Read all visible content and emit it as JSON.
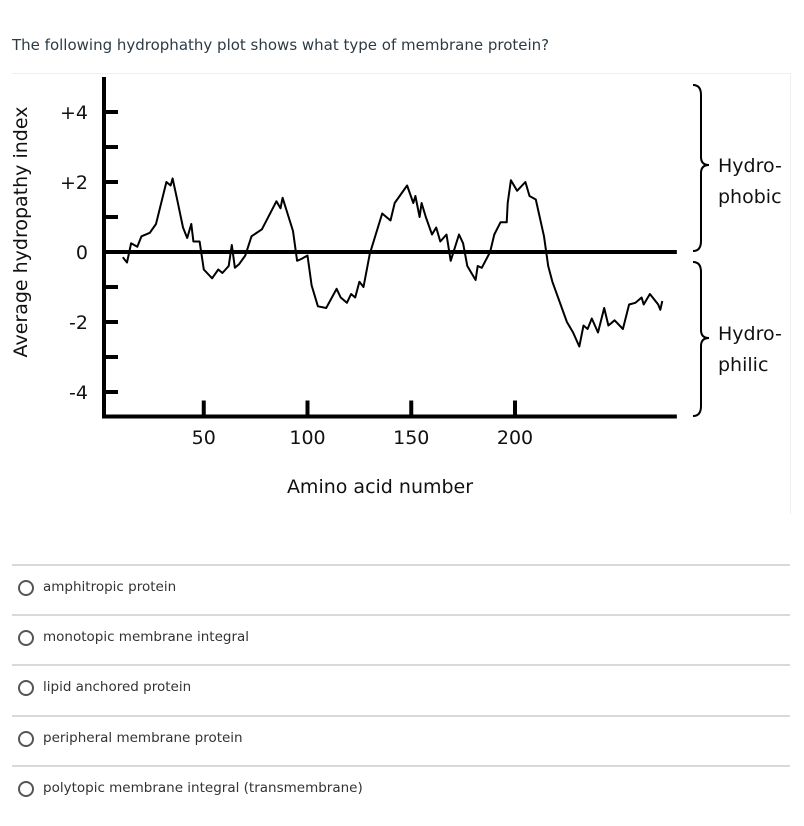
{
  "question": "The following hydrophathy plot shows what type of membrane protein?",
  "chart_data": {
    "type": "line",
    "title": "",
    "xlabel": "Amino acid number",
    "ylabel": "Average hydropathy index",
    "x_ticks": [
      "50",
      "100",
      "150",
      "200"
    ],
    "x_tick_values": [
      50,
      100,
      150,
      200
    ],
    "y_ticks": [
      "+4",
      "+2",
      "0",
      "-2",
      "-4"
    ],
    "y_tick_values": [
      4,
      2,
      0,
      -2,
      -4
    ],
    "xlim": [
      0,
      278
    ],
    "ylim": [
      -4.7,
      5
    ],
    "grid": false,
    "annotations": {
      "hydrophobic": "Hydro-\nphobic",
      "hydrophobic_lines": [
        "Hydro-",
        "phobic"
      ],
      "hydrophilic_lines": [
        "Hydro-",
        "philic"
      ]
    },
    "x": [
      11,
      13,
      15,
      18,
      20,
      24,
      27,
      32,
      34,
      35,
      37,
      40,
      42,
      44,
      45,
      48,
      50,
      54,
      57,
      59,
      62,
      63.5,
      65,
      67,
      70,
      73,
      78,
      85,
      87,
      88,
      93,
      95,
      97,
      100,
      102,
      105,
      109,
      114,
      116,
      119,
      121,
      123,
      125,
      127,
      130,
      136,
      140,
      142,
      148,
      151,
      152,
      154,
      155,
      157,
      160,
      162,
      164,
      167,
      169,
      173,
      175,
      177,
      181,
      182,
      184,
      188,
      190,
      193,
      196,
      196.5,
      198,
      201,
      205,
      207,
      210,
      214,
      216,
      218,
      225,
      228,
      231,
      233,
      235,
      237,
      240,
      243,
      245,
      248,
      252,
      255,
      258,
      261,
      262,
      265,
      269,
      270,
      271
    ],
    "y": [
      -0.15,
      -0.3,
      0.25,
      0.15,
      0.45,
      0.55,
      0.8,
      2.0,
      1.9,
      2.1,
      1.55,
      0.7,
      0.4,
      0.8,
      0.3,
      0.3,
      -0.5,
      -0.75,
      -0.5,
      -0.6,
      -0.4,
      0.2,
      -0.45,
      -0.35,
      -0.1,
      0.45,
      0.65,
      1.45,
      1.25,
      1.55,
      0.6,
      -0.25,
      -0.2,
      -0.1,
      -0.95,
      -1.55,
      -1.6,
      -1.05,
      -1.3,
      -1.45,
      -1.2,
      -1.3,
      -0.85,
      -1.0,
      -0.05,
      1.1,
      0.9,
      1.4,
      1.9,
      1.4,
      1.6,
      1.0,
      1.4,
      1.0,
      0.5,
      0.7,
      0.3,
      0.5,
      -0.25,
      0.5,
      0.25,
      -0.4,
      -0.8,
      -0.4,
      -0.45,
      0.0,
      0.5,
      0.85,
      0.85,
      1.4,
      2.05,
      1.75,
      2.0,
      1.6,
      1.5,
      0.45,
      -0.4,
      -0.85,
      -2.0,
      -2.3,
      -2.7,
      -2.1,
      -2.2,
      -1.9,
      -2.3,
      -1.6,
      -2.1,
      -1.95,
      -2.2,
      -1.5,
      -1.45,
      -1.3,
      -1.5,
      -1.2,
      -1.5,
      -1.65,
      -1.4
    ]
  },
  "options": [
    {
      "label": "amphitropic protein",
      "selected": false
    },
    {
      "label": "monotopic membrane integral",
      "selected": false
    },
    {
      "label": "lipid anchored protein",
      "selected": false
    },
    {
      "label": "peripheral membrane protein",
      "selected": false
    },
    {
      "label": "polytopic membrane integral (transmembrane)",
      "selected": false
    }
  ]
}
